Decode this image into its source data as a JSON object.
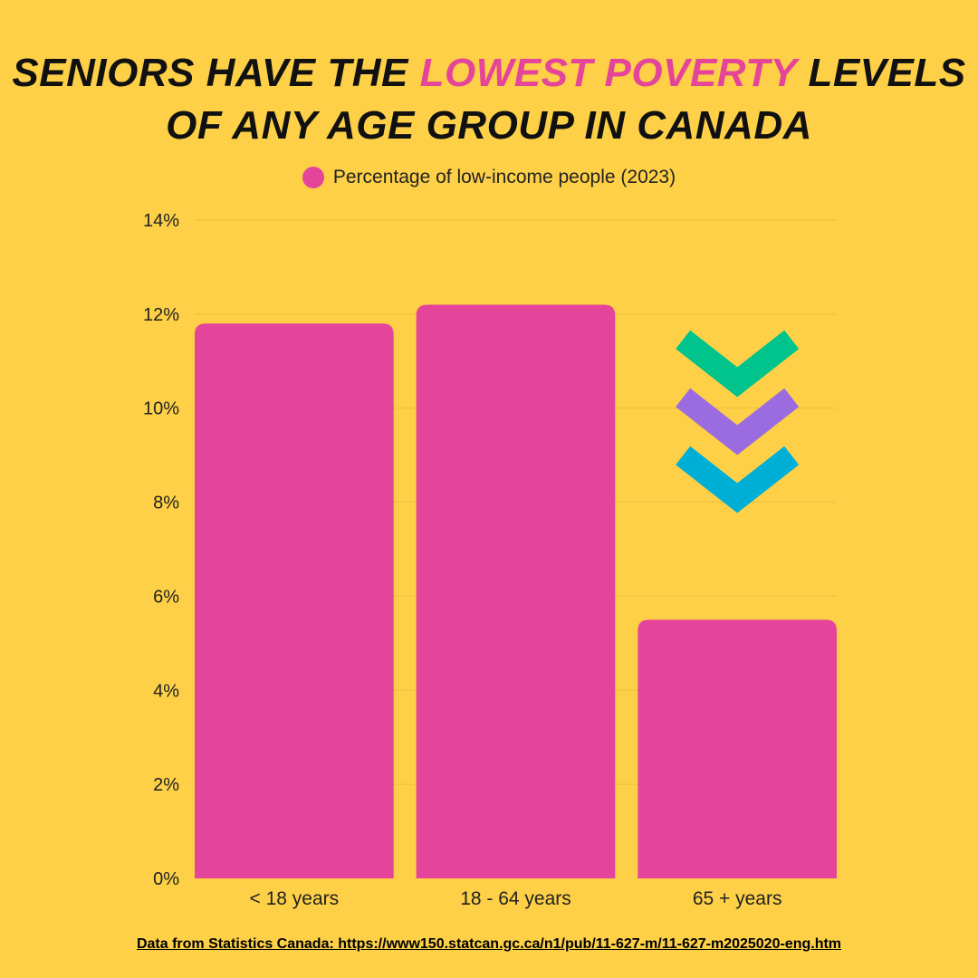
{
  "title": {
    "line1_before": "SENIORS HAVE THE ",
    "line1_accent": "LOWEST POVERTY",
    "line1_after": " LEVELS",
    "line2": "OF ANY AGE GROUP IN CANADA"
  },
  "colors": {
    "background": "#FDD047",
    "bar": "#E4449A",
    "accent_text": "#E4449A",
    "grid": "#EFBF3A",
    "chevron_top": "#00C48C",
    "chevron_middle": "#9B6BE0",
    "chevron_bottom": "#00AFD6"
  },
  "icons": [
    "chevron-down-icon",
    "chevron-down-icon",
    "chevron-down-icon"
  ],
  "source": {
    "text": "Data from Statistics Canada: https://www150.statcan.gc.ca/n1/pub/11-627-m/11-627-m2025020-eng.htm"
  },
  "chart_data": {
    "type": "bar",
    "title": "SENIORS HAVE THE LOWEST POVERTY LEVELS OF ANY AGE GROUP IN CANADA",
    "categories": [
      "< 18 years",
      "18 - 64 years",
      "65 + years"
    ],
    "series": [
      {
        "name": "Percentage of low-income people (2023)",
        "values": [
          11.8,
          12.2,
          5.5
        ]
      }
    ],
    "ylim": [
      0,
      14
    ],
    "yticks": [
      0,
      2,
      4,
      6,
      8,
      10,
      12,
      14
    ],
    "ytick_labels": [
      "0%",
      "2%",
      "4%",
      "6%",
      "8%",
      "10%",
      "12%",
      "14%"
    ],
    "xlabel": "",
    "ylabel": "",
    "grid": true,
    "legend_position": "top-center"
  }
}
